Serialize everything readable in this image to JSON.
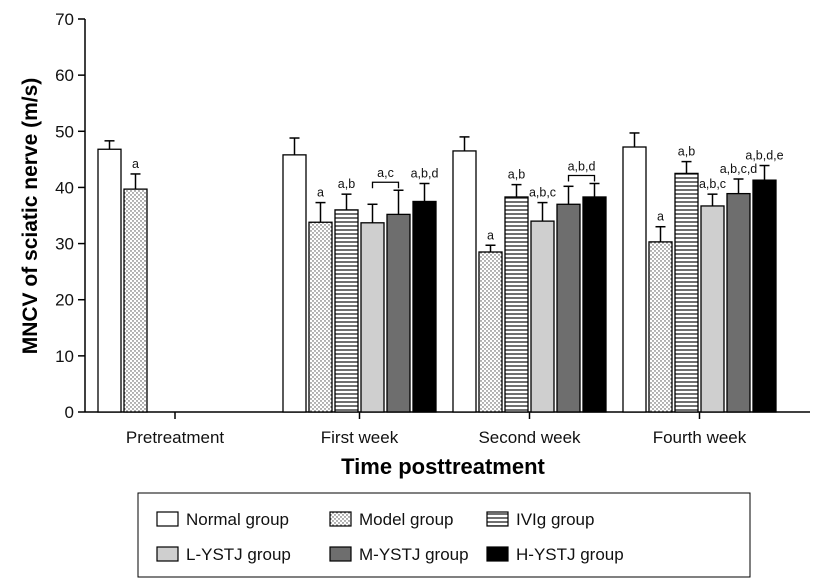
{
  "chart_data": {
    "type": "bar",
    "xlabel": "Time posttreatment",
    "ylabel": "MNCV of sciatic nerve (m/s)",
    "ylim": [
      0,
      70
    ],
    "yticks": [
      "0",
      "10",
      "20",
      "30",
      "40",
      "50",
      "60",
      "70"
    ],
    "grid": false,
    "legend_position": "bottom",
    "categories": [
      "Pretreatment",
      "First week",
      "Second week",
      "Fourth week"
    ],
    "series": [
      {
        "name": "Normal group",
        "pattern": "white",
        "values": [
          46.8,
          45.8,
          46.5,
          47.2
        ],
        "errors": [
          1.5,
          3.0,
          2.5,
          2.5
        ]
      },
      {
        "name": "Model group",
        "pattern": "dotted",
        "values": [
          39.7,
          33.8,
          28.5,
          30.3
        ],
        "errors": [
          2.7,
          3.5,
          1.2,
          2.7
        ]
      },
      {
        "name": "IVIg group",
        "pattern": "hlines",
        "values": [
          null,
          36.0,
          38.3,
          42.5
        ],
        "errors": [
          null,
          2.8,
          2.2,
          2.1
        ]
      },
      {
        "name": "L-YSTJ group",
        "pattern": "light-gray",
        "values": [
          null,
          33.7,
          34.0,
          36.7
        ],
        "errors": [
          null,
          3.3,
          3.3,
          2.1
        ]
      },
      {
        "name": "M-YSTJ group",
        "pattern": "dark-gray",
        "values": [
          null,
          35.2,
          37.0,
          38.9
        ],
        "errors": [
          null,
          4.3,
          3.2,
          2.6
        ]
      },
      {
        "name": "H-YSTJ group",
        "pattern": "black",
        "values": [
          null,
          37.5,
          38.3,
          41.3
        ],
        "errors": [
          null,
          3.2,
          2.4,
          2.6
        ]
      }
    ],
    "annotations": [
      {
        "category": 0,
        "series": 1,
        "text": "a"
      },
      {
        "category": 1,
        "series": 1,
        "text": "a"
      },
      {
        "category": 1,
        "series": 2,
        "text": "a,b"
      },
      {
        "category": 1,
        "series": 3,
        "text": "a,c",
        "bracket_to_series": 4
      },
      {
        "category": 1,
        "series": 5,
        "text": "a,b,d"
      },
      {
        "category": 2,
        "series": 1,
        "text": "a"
      },
      {
        "category": 2,
        "series": 2,
        "text": "a,b"
      },
      {
        "category": 2,
        "series": 3,
        "text": "a,b,c"
      },
      {
        "category": 2,
        "series": 4,
        "text": "a,b,d",
        "bracket_to_series": 5
      },
      {
        "category": 3,
        "series": 1,
        "text": "a"
      },
      {
        "category": 3,
        "series": 2,
        "text": "a,b"
      },
      {
        "category": 3,
        "series": 3,
        "text": "a,b,c"
      },
      {
        "category": 3,
        "series": 4,
        "text": "a,b,c,d"
      },
      {
        "category": 3,
        "series": 5,
        "text": "a,b,d,e"
      }
    ]
  }
}
